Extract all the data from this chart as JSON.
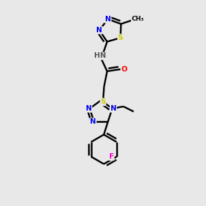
{
  "background_color": "#e8e8e8",
  "atom_colors": {
    "C": "#000000",
    "N": "#0000ee",
    "S": "#cccc00",
    "O": "#ff0000",
    "F": "#ff00cc",
    "H": "#555555"
  },
  "bond_color": "#000000",
  "bond_width": 1.8
}
